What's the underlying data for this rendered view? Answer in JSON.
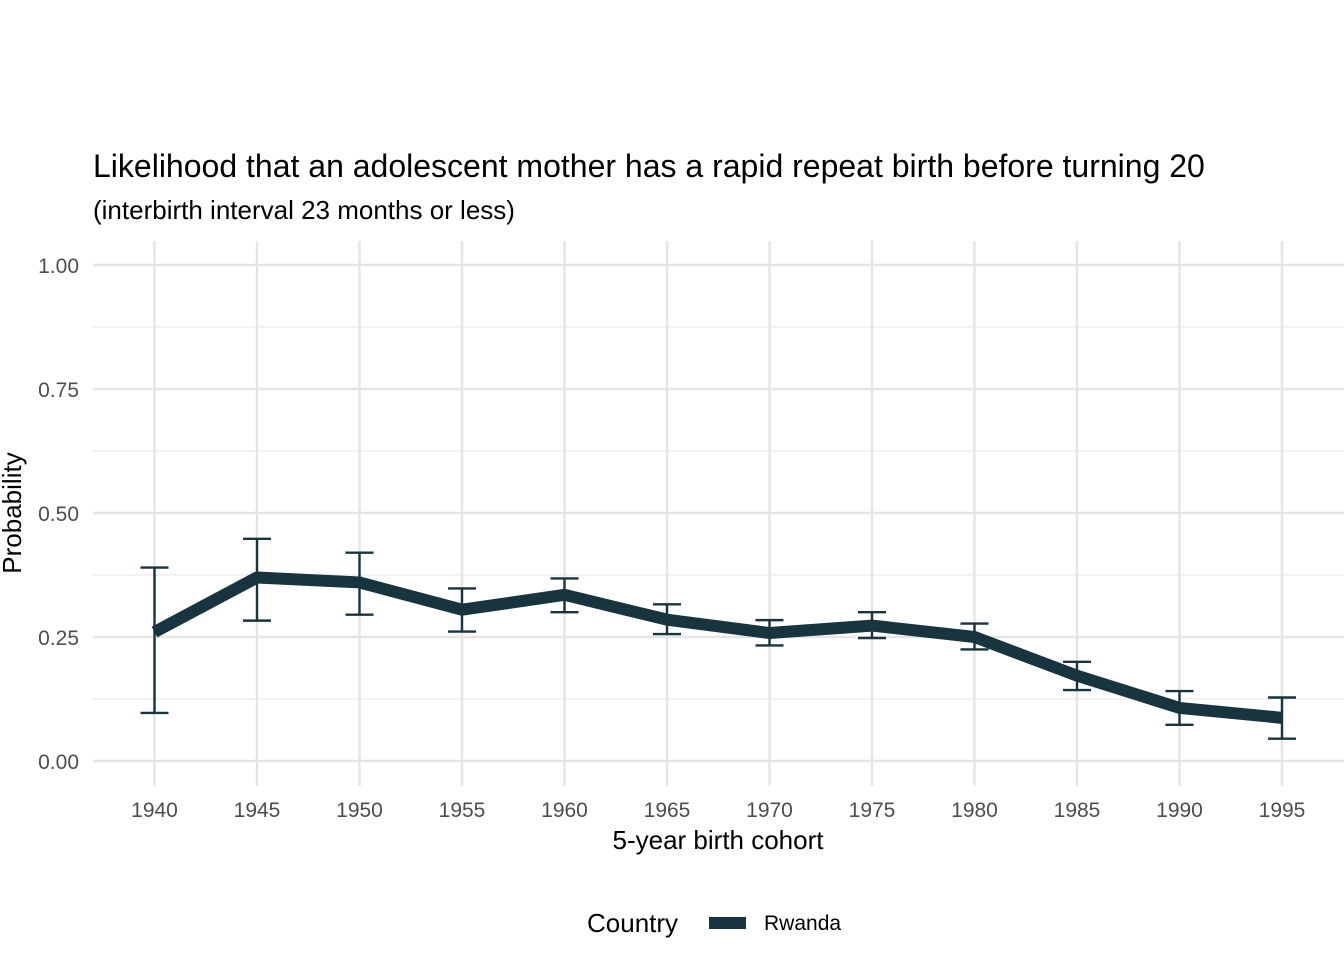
{
  "chart_data": {
    "type": "line",
    "title": "Likelihood that an adolescent mother has a rapid repeat birth before turning 20",
    "subtitle": "(interbirth interval 23 months or less)",
    "xlabel": "5-year birth cohort",
    "ylabel": "Probability",
    "x": [
      1940,
      1945,
      1950,
      1955,
      1960,
      1965,
      1970,
      1975,
      1980,
      1985,
      1990,
      1995
    ],
    "x_ticks": [
      "1940",
      "1945",
      "1950",
      "1955",
      "1960",
      "1965",
      "1970",
      "1975",
      "1980",
      "1985",
      "1990",
      "1995"
    ],
    "xlim": [
      1937,
      1998
    ],
    "y_ticks": [
      "0.00",
      "0.25",
      "0.50",
      "0.75",
      "1.00"
    ],
    "ylim": [
      0,
      1.05
    ],
    "grid": true,
    "legend": {
      "title": "Country",
      "position": "bottom"
    },
    "series": [
      {
        "name": "Rwanda",
        "color": "#17343f",
        "values": [
          0.26,
          0.37,
          0.36,
          0.305,
          0.335,
          0.285,
          0.258,
          0.273,
          0.25,
          0.172,
          0.107,
          0.087
        ],
        "lower": [
          0.097,
          0.283,
          0.295,
          0.261,
          0.3,
          0.256,
          0.233,
          0.248,
          0.225,
          0.143,
          0.073,
          0.045
        ],
        "upper": [
          0.39,
          0.448,
          0.42,
          0.348,
          0.368,
          0.316,
          0.284,
          0.3,
          0.277,
          0.2,
          0.141,
          0.128
        ]
      }
    ]
  }
}
